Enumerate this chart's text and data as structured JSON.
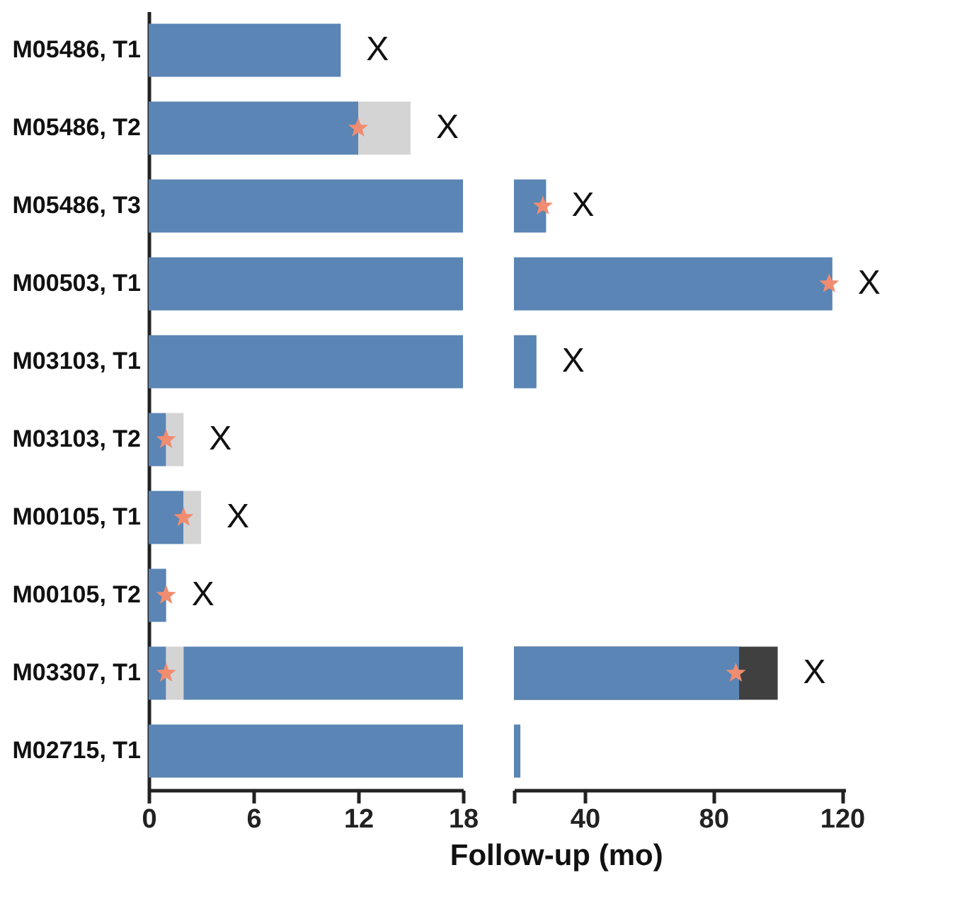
{
  "chart_data": [
    {
      "type": "bar",
      "orientation": "horizontal",
      "stacked": true,
      "xlabel": "Follow-up (mo)",
      "categories": [
        "M05486, T1",
        "M05486, T2",
        "M05486, T3",
        "M00503, T1",
        "M03103, T1",
        "M03103, T2",
        "M00105, T1",
        "M00105, T2",
        "M03307, T1",
        "M02715, T1"
      ],
      "series": [
        {
          "color": "#5a85b5",
          "values": [
            11,
            12,
            18,
            18,
            18,
            1,
            2,
            1,
            1,
            18
          ]
        },
        {
          "color": "#d4d4d4",
          "values": [
            null,
            3,
            null,
            null,
            null,
            1,
            1,
            null,
            1,
            null
          ]
        },
        {
          "color": "#5a85b5",
          "values": [
            null,
            null,
            null,
            null,
            null,
            null,
            null,
            null,
            16,
            null
          ]
        },
        {
          "type": "scatter",
          "marker": "star",
          "color": "#f08c70",
          "values": [
            null,
            12,
            null,
            null,
            null,
            1,
            2,
            1,
            1,
            null
          ]
        }
      ],
      "xlim": [
        0,
        18
      ],
      "xticks": [
        0,
        6,
        12,
        18
      ],
      "annotations": [
        {
          "text": "X",
          "x": 11,
          "y": "M05486, T1"
        },
        {
          "text": "X",
          "x": 15,
          "y": "M05486, T2"
        },
        {
          "text": "X",
          "x": 2,
          "y": "M03103, T2"
        },
        {
          "text": "X",
          "x": 3,
          "y": "M00105, T1"
        },
        {
          "text": "X",
          "x": 1,
          "y": "M00105, T2"
        }
      ]
    },
    {
      "type": "bar",
      "orientation": "horizontal",
      "tick_labels": "x",
      "categories": [
        "M05486, T1",
        "M05486, T2",
        "M05486, T3",
        "M00503, T1",
        "M03103, T1",
        "M03103, T2",
        "M00105, T1",
        "M00105, T2",
        "M03307, T1",
        "M02715, T1"
      ],
      "series": [
        {
          "color": "#404040",
          "values": [
            null,
            null,
            null,
            null,
            null,
            null,
            null,
            null,
            100,
            null
          ]
        },
        {
          "color": "#5a85b5",
          "values": [
            null,
            null,
            28,
            117,
            25,
            null,
            null,
            null,
            88,
            20
          ]
        },
        {
          "type": "scatter",
          "marker": "star",
          "color": "#f08c70",
          "values": [
            null,
            null,
            27,
            116,
            null,
            null,
            null,
            null,
            87,
            null
          ]
        }
      ],
      "xlim": [
        18,
        121
      ],
      "xticks": [
        {
          "value": 18,
          "label": null
        },
        40,
        80,
        120
      ],
      "annotations": [
        {
          "text": "X",
          "x": 28,
          "y": "M05486, T3"
        },
        {
          "text": "X",
          "x": 117,
          "y": "M00503, T1"
        },
        {
          "text": "X",
          "x": 25,
          "y": "M03103, T1"
        },
        {
          "text": "X",
          "x": 100,
          "y": "M03307, T1"
        }
      ]
    }
  ]
}
